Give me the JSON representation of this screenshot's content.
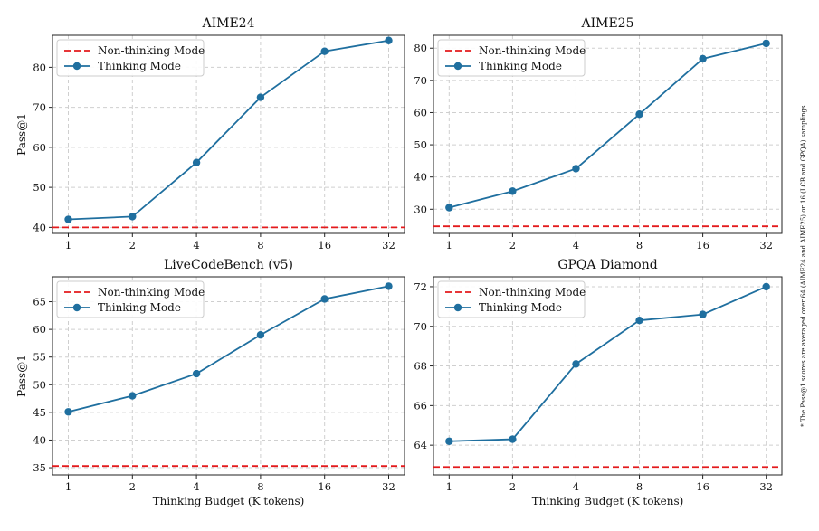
{
  "chart_data": [
    {
      "type": "line",
      "title": "AIME24",
      "xlabel": "",
      "ylabel": "Pass@1",
      "categories": [
        "1",
        "2",
        "4",
        "8",
        "16",
        "32"
      ],
      "ylim": [
        38.5,
        88
      ],
      "yticks": [
        40,
        50,
        60,
        70,
        80
      ],
      "grid": true,
      "legend": "top-left",
      "series": [
        {
          "name": "Non-thinking Mode",
          "style": "dashed",
          "color": "#e41a1c",
          "constant": 40.0
        },
        {
          "name": "Thinking Mode",
          "style": "solid-marker",
          "color": "#1f6f9f",
          "values": [
            42.0,
            42.7,
            56.2,
            72.5,
            84.0,
            86.7
          ]
        }
      ]
    },
    {
      "type": "line",
      "title": "AIME25",
      "xlabel": "",
      "ylabel": "",
      "categories": [
        "1",
        "2",
        "4",
        "8",
        "16",
        "32"
      ],
      "ylim": [
        22.5,
        84
      ],
      "yticks": [
        30,
        40,
        50,
        60,
        70,
        80
      ],
      "grid": true,
      "legend": "top-left",
      "series": [
        {
          "name": "Non-thinking Mode",
          "style": "dashed",
          "color": "#e41a1c",
          "constant": 24.7
        },
        {
          "name": "Thinking Mode",
          "style": "solid-marker",
          "color": "#1f6f9f",
          "values": [
            30.5,
            35.6,
            42.6,
            59.5,
            76.7,
            81.5
          ]
        }
      ]
    },
    {
      "type": "line",
      "title": "LiveCodeBench (v5)",
      "xlabel": "Thinking Budget (K tokens)",
      "ylabel": "Pass@1",
      "categories": [
        "1",
        "2",
        "4",
        "8",
        "16",
        "32"
      ],
      "ylim": [
        33.7,
        69.5
      ],
      "yticks": [
        35,
        40,
        45,
        50,
        55,
        60,
        65
      ],
      "grid": true,
      "legend": "top-left",
      "series": [
        {
          "name": "Non-thinking Mode",
          "style": "dashed",
          "color": "#e41a1c",
          "constant": 35.3
        },
        {
          "name": "Thinking Mode",
          "style": "solid-marker",
          "color": "#1f6f9f",
          "values": [
            45.1,
            48.0,
            52.0,
            59.0,
            65.5,
            67.8
          ]
        }
      ]
    },
    {
      "type": "line",
      "title": "GPQA Diamond",
      "xlabel": "Thinking Budget (K tokens)",
      "ylabel": "",
      "categories": [
        "1",
        "2",
        "4",
        "8",
        "16",
        "32"
      ],
      "ylim": [
        62.5,
        72.5
      ],
      "yticks": [
        64,
        66,
        68,
        70,
        72
      ],
      "grid": true,
      "legend": "top-left",
      "series": [
        {
          "name": "Non-thinking Mode",
          "style": "dashed",
          "color": "#e41a1c",
          "constant": 62.9
        },
        {
          "name": "Thinking Mode",
          "style": "solid-marker",
          "color": "#1f6f9f",
          "values": [
            64.2,
            64.3,
            68.1,
            70.3,
            70.6,
            72.0
          ]
        }
      ]
    }
  ],
  "footnote": "* The Pass@1 scores are averaged over 64 (AIME24 and AIME25) or 16 (LCB and GPQA) samplings."
}
